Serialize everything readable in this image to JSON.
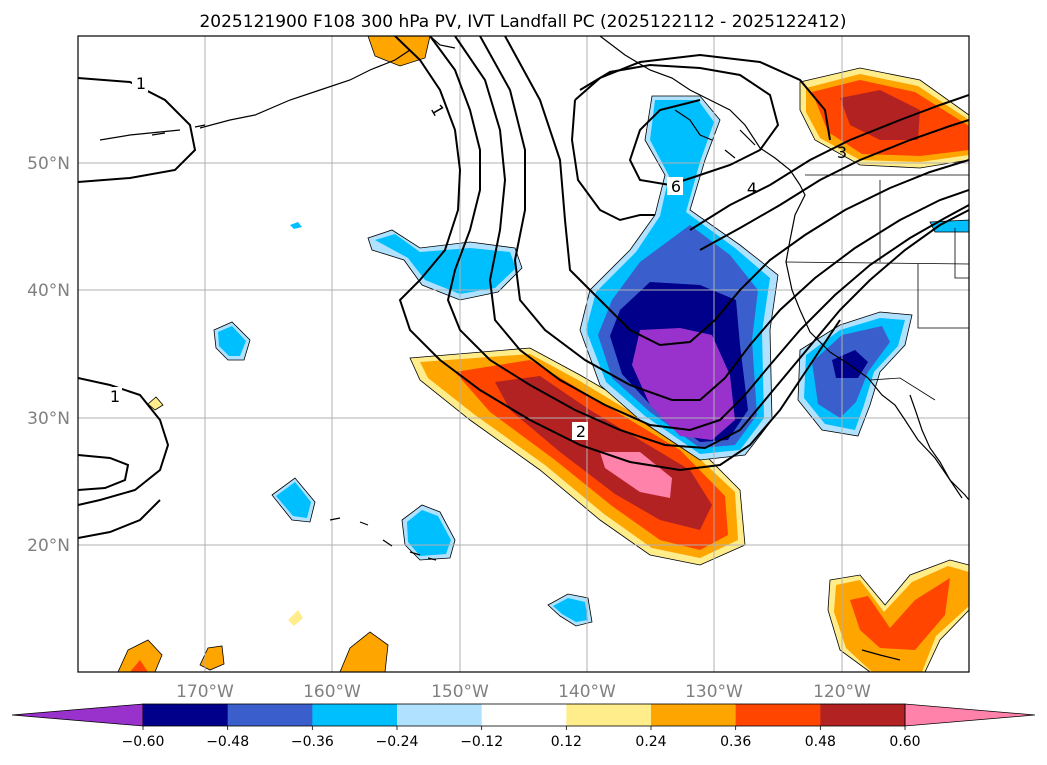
{
  "chart_data": {
    "type": "contour-map",
    "title": "2025121900 F108 300 hPa PV, IVT Landfall PC (2025122112 - 2025122412)",
    "x_ticks": [
      "170°W",
      "160°W",
      "150°W",
      "140°W",
      "130°W",
      "120°W"
    ],
    "y_ticks": [
      "20°N",
      "30°N",
      "40°N",
      "50°N"
    ],
    "lon_range": [
      -180,
      -110
    ],
    "lat_range": [
      10,
      60
    ],
    "colorbar": {
      "levels": [
        "−0.60",
        "−0.48",
        "−0.36",
        "−0.24",
        "−0.12",
        "0.12",
        "0.24",
        "0.36",
        "0.48",
        "0.60"
      ],
      "colors": [
        "#9932cc",
        "#00008b",
        "#3a5fcd",
        "#00bfff",
        "#b0e2ff",
        "#ffffff",
        "#ffec8b",
        "#ffa500",
        "#ff4500",
        "#b22222",
        "#ff82ab"
      ],
      "extend": "both"
    },
    "pv_contour_labels": [
      "1",
      "1",
      "1",
      "2",
      "3",
      "4",
      "6"
    ]
  },
  "colors": {
    "grid": "#b0b0b0",
    "tick_label": "#808080"
  }
}
